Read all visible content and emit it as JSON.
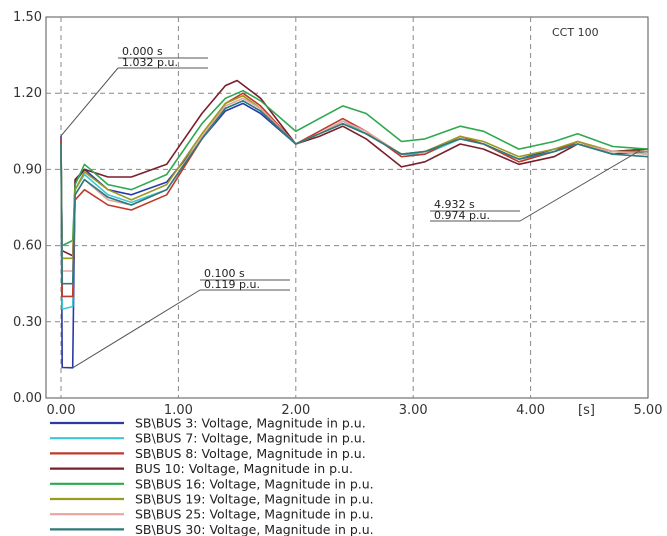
{
  "chart_data": {
    "type": "line",
    "case_label": "CCT 100",
    "xlabel": "[s]",
    "xlim": [
      0,
      5
    ],
    "ylim": [
      0,
      1.5
    ],
    "x_ticks": [
      "0.00",
      "1.00",
      "2.00",
      "3.00",
      "4.00",
      "5.00"
    ],
    "y_ticks": [
      "0.00",
      "0.30",
      "0.60",
      "0.90",
      "1.20",
      "1.50"
    ],
    "grid": true,
    "legend_position": "bottom",
    "annotations": [
      {
        "time": "0.000 s",
        "value": "1.032 p.u.",
        "x": 0.0,
        "y": 1.032
      },
      {
        "time": "0.100 s",
        "value": "0.119 p.u.",
        "x": 0.1,
        "y": 0.119
      },
      {
        "time": "4.932 s",
        "value": "0.974 p.u.",
        "x": 4.932,
        "y": 0.974
      }
    ],
    "series": [
      {
        "name": "SB\\BUS 3: Voltage, Magnitude in p.u.",
        "color": "#2b3aa8",
        "points": [
          [
            0,
            1.032
          ],
          [
            0.01,
            0.12
          ],
          [
            0.1,
            0.119
          ],
          [
            0.12,
            0.85
          ],
          [
            0.2,
            0.9
          ],
          [
            0.4,
            0.82
          ],
          [
            0.6,
            0.8
          ],
          [
            0.9,
            0.85
          ],
          [
            1.2,
            1.02
          ],
          [
            1.4,
            1.13
          ],
          [
            1.55,
            1.16
          ],
          [
            1.7,
            1.12
          ],
          [
            2.0,
            1.0
          ],
          [
            2.2,
            1.04
          ],
          [
            2.4,
            1.08
          ],
          [
            2.6,
            1.04
          ],
          [
            2.9,
            0.96
          ],
          [
            3.1,
            0.97
          ],
          [
            3.4,
            1.02
          ],
          [
            3.6,
            1.0
          ],
          [
            3.9,
            0.94
          ],
          [
            4.2,
            0.98
          ],
          [
            4.4,
            1.0
          ],
          [
            4.7,
            0.96
          ],
          [
            5.0,
            0.97
          ]
        ]
      },
      {
        "name": "SB\\BUS 7: Voltage, Magnitude in p.u.",
        "color": "#3fc6d6",
        "points": [
          [
            0,
            1.0
          ],
          [
            0.01,
            0.35
          ],
          [
            0.1,
            0.36
          ],
          [
            0.12,
            0.82
          ],
          [
            0.2,
            0.88
          ],
          [
            0.4,
            0.8
          ],
          [
            0.6,
            0.77
          ],
          [
            0.9,
            0.82
          ],
          [
            1.2,
            1.02
          ],
          [
            1.4,
            1.14
          ],
          [
            1.55,
            1.17
          ],
          [
            1.7,
            1.13
          ],
          [
            2.0,
            1.0
          ],
          [
            2.2,
            1.04
          ],
          [
            2.4,
            1.09
          ],
          [
            2.6,
            1.04
          ],
          [
            2.9,
            0.96
          ],
          [
            3.1,
            0.96
          ],
          [
            3.4,
            1.02
          ],
          [
            3.6,
            1.0
          ],
          [
            3.9,
            0.94
          ],
          [
            4.2,
            0.97
          ],
          [
            4.4,
            1.0
          ],
          [
            4.7,
            0.97
          ],
          [
            5.0,
            0.96
          ]
        ]
      },
      {
        "name": "SB\\BUS 8: Voltage, Magnitude in p.u.",
        "color": "#c0392b",
        "points": [
          [
            0,
            1.02
          ],
          [
            0.01,
            0.4
          ],
          [
            0.1,
            0.4
          ],
          [
            0.12,
            0.78
          ],
          [
            0.2,
            0.82
          ],
          [
            0.4,
            0.76
          ],
          [
            0.6,
            0.74
          ],
          [
            0.9,
            0.8
          ],
          [
            1.2,
            1.02
          ],
          [
            1.4,
            1.16
          ],
          [
            1.55,
            1.2
          ],
          [
            1.7,
            1.15
          ],
          [
            2.0,
            1.0
          ],
          [
            2.2,
            1.05
          ],
          [
            2.4,
            1.1
          ],
          [
            2.6,
            1.05
          ],
          [
            2.9,
            0.95
          ],
          [
            3.1,
            0.96
          ],
          [
            3.4,
            1.03
          ],
          [
            3.6,
            1.0
          ],
          [
            3.9,
            0.93
          ],
          [
            4.2,
            0.97
          ],
          [
            4.4,
            1.01
          ],
          [
            4.7,
            0.97
          ],
          [
            5.0,
            0.98
          ]
        ]
      },
      {
        "name": "BUS 10: Voltage, Magnitude in p.u.",
        "color": "#7a1f2b",
        "points": [
          [
            0,
            1.0
          ],
          [
            0.01,
            0.58
          ],
          [
            0.1,
            0.56
          ],
          [
            0.12,
            0.86
          ],
          [
            0.2,
            0.9
          ],
          [
            0.4,
            0.87
          ],
          [
            0.6,
            0.87
          ],
          [
            0.9,
            0.92
          ],
          [
            1.2,
            1.12
          ],
          [
            1.4,
            1.23
          ],
          [
            1.5,
            1.25
          ],
          [
            1.7,
            1.18
          ],
          [
            2.0,
            1.0
          ],
          [
            2.2,
            1.03
          ],
          [
            2.4,
            1.07
          ],
          [
            2.6,
            1.02
          ],
          [
            2.9,
            0.91
          ],
          [
            3.1,
            0.93
          ],
          [
            3.4,
            1.0
          ],
          [
            3.6,
            0.98
          ],
          [
            3.9,
            0.92
          ],
          [
            4.2,
            0.95
          ],
          [
            4.4,
            1.0
          ],
          [
            4.7,
            0.97
          ],
          [
            5.0,
            0.98
          ]
        ]
      },
      {
        "name": "SB\\BUS 16: Voltage, Magnitude in p.u.",
        "color": "#2fa84f",
        "points": [
          [
            0,
            1.0
          ],
          [
            0.01,
            0.6
          ],
          [
            0.1,
            0.62
          ],
          [
            0.12,
            0.84
          ],
          [
            0.2,
            0.92
          ],
          [
            0.4,
            0.84
          ],
          [
            0.6,
            0.82
          ],
          [
            0.9,
            0.88
          ],
          [
            1.2,
            1.08
          ],
          [
            1.4,
            1.18
          ],
          [
            1.55,
            1.21
          ],
          [
            1.7,
            1.17
          ],
          [
            2.0,
            1.05
          ],
          [
            2.2,
            1.1
          ],
          [
            2.4,
            1.15
          ],
          [
            2.6,
            1.12
          ],
          [
            2.9,
            1.01
          ],
          [
            3.1,
            1.02
          ],
          [
            3.4,
            1.07
          ],
          [
            3.6,
            1.05
          ],
          [
            3.9,
            0.98
          ],
          [
            4.2,
            1.01
          ],
          [
            4.4,
            1.04
          ],
          [
            4.7,
            0.99
          ],
          [
            5.0,
            0.98
          ]
        ]
      },
      {
        "name": "SB\\BUS 19: Voltage, Magnitude in p.u.",
        "color": "#9a9a1f",
        "points": [
          [
            0,
            1.0
          ],
          [
            0.01,
            0.55
          ],
          [
            0.1,
            0.55
          ],
          [
            0.12,
            0.82
          ],
          [
            0.2,
            0.89
          ],
          [
            0.4,
            0.82
          ],
          [
            0.6,
            0.78
          ],
          [
            0.9,
            0.84
          ],
          [
            1.2,
            1.04
          ],
          [
            1.4,
            1.16
          ],
          [
            1.55,
            1.19
          ],
          [
            1.7,
            1.14
          ],
          [
            2.0,
            1.0
          ],
          [
            2.2,
            1.04
          ],
          [
            2.4,
            1.08
          ],
          [
            2.6,
            1.04
          ],
          [
            2.9,
            0.96
          ],
          [
            3.1,
            0.97
          ],
          [
            3.4,
            1.03
          ],
          [
            3.6,
            1.01
          ],
          [
            3.9,
            0.95
          ],
          [
            4.2,
            0.98
          ],
          [
            4.4,
            1.01
          ],
          [
            4.7,
            0.97
          ],
          [
            5.0,
            0.97
          ]
        ]
      },
      {
        "name": "SB\\BUS 25: Voltage, Magnitude in p.u.",
        "color": "#e8a49a",
        "points": [
          [
            0,
            1.0
          ],
          [
            0.01,
            0.5
          ],
          [
            0.1,
            0.5
          ],
          [
            0.12,
            0.8
          ],
          [
            0.2,
            0.86
          ],
          [
            0.4,
            0.78
          ],
          [
            0.6,
            0.76
          ],
          [
            0.9,
            0.82
          ],
          [
            1.2,
            1.03
          ],
          [
            1.4,
            1.15
          ],
          [
            1.55,
            1.18
          ],
          [
            1.7,
            1.14
          ],
          [
            2.0,
            1.0
          ],
          [
            2.2,
            1.04
          ],
          [
            2.4,
            1.09
          ],
          [
            2.6,
            1.05
          ],
          [
            2.9,
            0.96
          ],
          [
            3.1,
            0.97
          ],
          [
            3.4,
            1.02
          ],
          [
            3.6,
            1.0
          ],
          [
            3.9,
            0.94
          ],
          [
            4.2,
            0.97
          ],
          [
            4.4,
            1.0
          ],
          [
            4.7,
            0.97
          ],
          [
            5.0,
            0.96
          ]
        ]
      },
      {
        "name": "SB\\BUS 30: Voltage, Magnitude in p.u.",
        "color": "#2c7a7a",
        "points": [
          [
            0,
            1.0
          ],
          [
            0.01,
            0.45
          ],
          [
            0.1,
            0.45
          ],
          [
            0.12,
            0.8
          ],
          [
            0.2,
            0.86
          ],
          [
            0.4,
            0.79
          ],
          [
            0.6,
            0.76
          ],
          [
            0.9,
            0.82
          ],
          [
            1.2,
            1.02
          ],
          [
            1.4,
            1.14
          ],
          [
            1.55,
            1.17
          ],
          [
            1.7,
            1.13
          ],
          [
            2.0,
            1.0
          ],
          [
            2.2,
            1.04
          ],
          [
            2.4,
            1.08
          ],
          [
            2.6,
            1.04
          ],
          [
            2.9,
            0.96
          ],
          [
            3.1,
            0.97
          ],
          [
            3.4,
            1.02
          ],
          [
            3.6,
            1.0
          ],
          [
            3.9,
            0.94
          ],
          [
            4.2,
            0.97
          ],
          [
            4.4,
            1.0
          ],
          [
            4.7,
            0.96
          ],
          [
            5.0,
            0.95
          ]
        ]
      }
    ]
  }
}
